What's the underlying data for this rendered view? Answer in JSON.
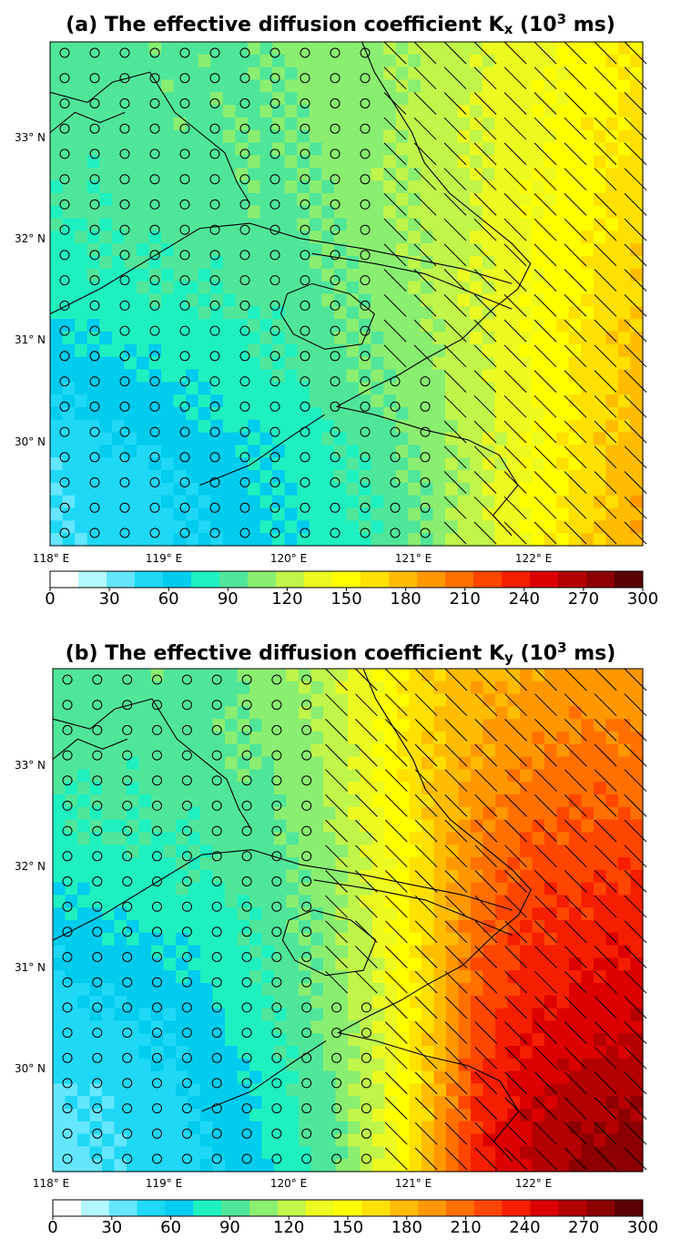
{
  "panels": [
    {
      "id": "a",
      "title_prefix": "(a) The effective diffusion coefficient K",
      "title_sub": "x",
      "title_mid": " (10",
      "title_sup": "3",
      "title_suffix": " ms)"
    },
    {
      "id": "b",
      "title_prefix": "(b) The effective diffusion coefficient K",
      "title_sub": "y",
      "title_mid": " (10",
      "title_sup": "3",
      "title_suffix": " ms)"
    }
  ],
  "lat_labels": [
    "33° N",
    "32° N",
    "31° N",
    "30° N"
  ],
  "lon_labels": [
    "118° E",
    "119° E",
    "120° E",
    "121° E",
    "122° E"
  ],
  "colorbar": {
    "ticks": [
      "0",
      "30",
      "60",
      "90",
      "120",
      "150",
      "180",
      "210",
      "240",
      "270",
      "300"
    ],
    "colors": [
      "#ffffff",
      "#b4f8ff",
      "#64e6ff",
      "#1ed8f6",
      "#00ccee",
      "#1ef0c0",
      "#50e69a",
      "#8aee70",
      "#c0f54a",
      "#ecfa20",
      "#ffff00",
      "#ffe000",
      "#ffbc00",
      "#ff9800",
      "#ff7000",
      "#ff4600",
      "#f51e00",
      "#dc0000",
      "#b40000",
      "#8c0000",
      "#5a0000"
    ]
  },
  "chart_data": {
    "type": "heatmap",
    "description_units": "10^3 ms",
    "lon_range": [
      118,
      123
    ],
    "lat_range": [
      29,
      34
    ],
    "vmin": 0,
    "vmax": 300,
    "panels": [
      {
        "id": "a",
        "variable": "Kx",
        "grid_note": "values increase west to east; lowest (30-60) south-west, highest (180-200) south-east",
        "sample_grid_rows_north_to_south": [
          [
            100,
            100,
            100,
            100,
            105,
            110,
            115,
            125,
            135,
            145,
            155,
            165
          ],
          [
            95,
            95,
            100,
            100,
            105,
            110,
            115,
            125,
            135,
            145,
            160,
            170
          ],
          [
            90,
            95,
            95,
            100,
            100,
            105,
            115,
            125,
            135,
            150,
            160,
            175
          ],
          [
            80,
            85,
            90,
            90,
            95,
            100,
            110,
            120,
            135,
            150,
            165,
            180
          ],
          [
            65,
            70,
            75,
            80,
            85,
            95,
            105,
            115,
            130,
            150,
            170,
            185
          ],
          [
            50,
            55,
            60,
            70,
            75,
            85,
            95,
            110,
            130,
            150,
            170,
            190
          ],
          [
            45,
            50,
            55,
            60,
            70,
            80,
            90,
            105,
            130,
            155,
            175,
            195
          ]
        ]
      },
      {
        "id": "b",
        "variable": "Ky",
        "grid_note": "values increase west to east; lowest (30-60) south-west, highest (270-300) south-east",
        "sample_grid_rows_north_to_south": [
          [
            100,
            100,
            100,
            100,
            110,
            125,
            150,
            175,
            190,
            195,
            200,
            200
          ],
          [
            95,
            95,
            95,
            100,
            105,
            120,
            150,
            180,
            195,
            210,
            215,
            215
          ],
          [
            85,
            90,
            90,
            95,
            100,
            115,
            140,
            175,
            210,
            225,
            230,
            230
          ],
          [
            70,
            75,
            80,
            85,
            95,
            110,
            135,
            175,
            220,
            240,
            245,
            250
          ],
          [
            55,
            60,
            65,
            75,
            90,
            105,
            130,
            175,
            230,
            250,
            260,
            265
          ],
          [
            45,
            50,
            55,
            65,
            80,
            100,
            130,
            180,
            240,
            265,
            275,
            280
          ],
          [
            40,
            45,
            50,
            60,
            75,
            95,
            130,
            185,
            250,
            275,
            290,
            295
          ]
        ]
      }
    ]
  }
}
